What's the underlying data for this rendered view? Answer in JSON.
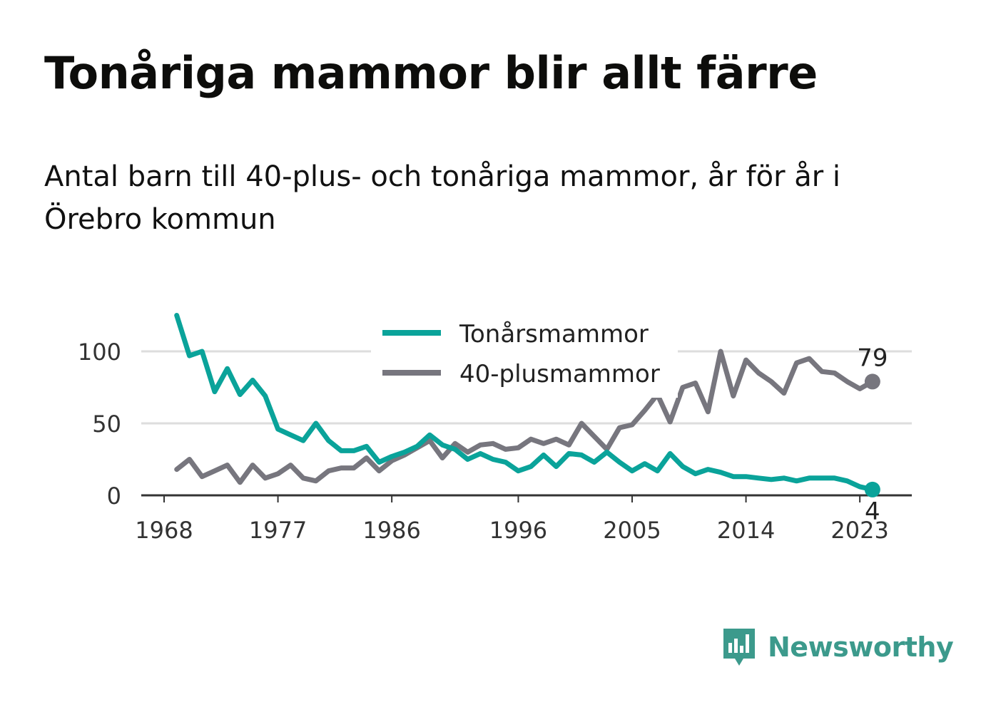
{
  "title": "Tonåriga mammor blir allt färre",
  "subtitle": "Antal barn till 40-plus- och tonåriga mammor, år för år i Örebro kommun",
  "brand": {
    "name": "Newsworthy",
    "logo_icon": "newsworthy-logo-icon",
    "color": "#3c9a8c"
  },
  "colors": {
    "teen": "#0aa39a",
    "forty": "#77767e",
    "grid": "#dddddd",
    "axis": "#333333"
  },
  "chart_data": {
    "type": "line",
    "ylim": [
      0,
      130
    ],
    "xlim": [
      1968,
      2025
    ],
    "yticks": [
      0,
      50,
      100
    ],
    "ytick_labels": [
      "0",
      "50",
      "100"
    ],
    "xticks": [
      1968,
      1977,
      1986,
      1996,
      2005,
      2014,
      2023
    ],
    "xtick_labels": [
      "1968",
      "1977",
      "1986",
      "1996",
      "2005",
      "2014",
      "2023"
    ],
    "grid": true,
    "legend_position": "top-center",
    "x": [
      1969,
      1970,
      1971,
      1972,
      1973,
      1974,
      1975,
      1976,
      1977,
      1978,
      1979,
      1980,
      1981,
      1982,
      1983,
      1984,
      1985,
      1986,
      1987,
      1988,
      1989,
      1990,
      1991,
      1992,
      1993,
      1994,
      1995,
      1996,
      1997,
      1998,
      1999,
      2000,
      2001,
      2002,
      2003,
      2004,
      2005,
      2006,
      2007,
      2008,
      2009,
      2010,
      2011,
      2012,
      2013,
      2014,
      2015,
      2016,
      2017,
      2018,
      2019,
      2020,
      2021,
      2022,
      2023,
      2024
    ],
    "series": [
      {
        "name": "Tonårsmammor",
        "end_label": "4",
        "values": [
          125,
          97,
          100,
          72,
          88,
          70,
          80,
          69,
          46,
          42,
          38,
          50,
          38,
          31,
          31,
          34,
          23,
          27,
          30,
          34,
          42,
          35,
          32,
          25,
          29,
          25,
          23,
          17,
          20,
          28,
          20,
          29,
          28,
          23,
          30,
          23,
          17,
          22,
          17,
          29,
          20,
          15,
          18,
          16,
          13,
          13,
          12,
          11,
          12,
          10,
          12,
          12,
          12,
          10,
          6,
          4
        ]
      },
      {
        "name": "40-plusmammor",
        "end_label": "79",
        "values": [
          18,
          25,
          13,
          17,
          21,
          9,
          21,
          12,
          15,
          21,
          12,
          10,
          17,
          19,
          19,
          26,
          17,
          24,
          28,
          33,
          38,
          26,
          36,
          30,
          35,
          36,
          32,
          33,
          39,
          36,
          39,
          35,
          50,
          41,
          32,
          47,
          49,
          59,
          70,
          51,
          75,
          78,
          58,
          100,
          69,
          94,
          85,
          79,
          71,
          92,
          95,
          86,
          85,
          79,
          74,
          79
        ]
      }
    ]
  }
}
